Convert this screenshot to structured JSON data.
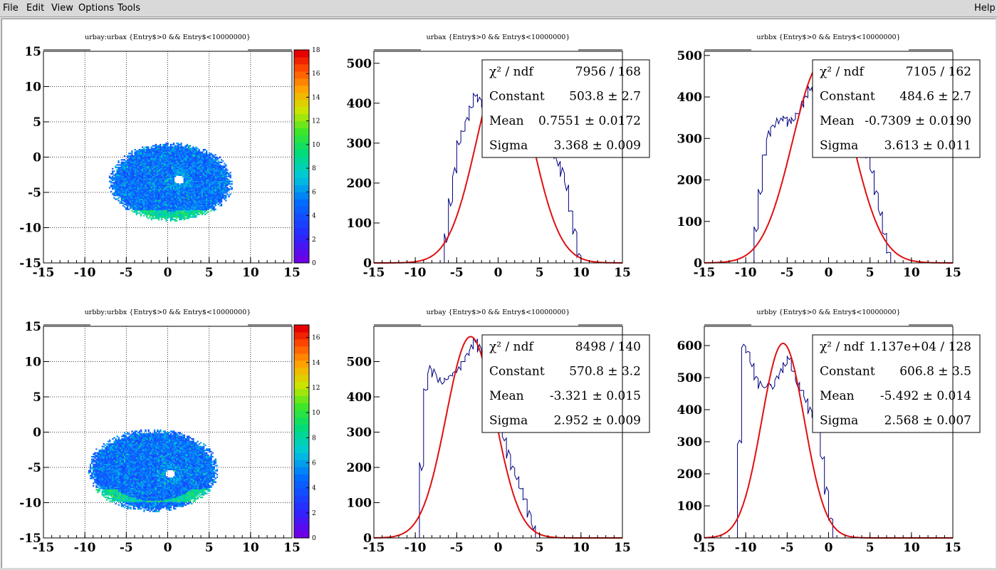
{
  "menu": {
    "file": "File",
    "edit": "Edit",
    "view": "View",
    "options": "Options",
    "tools": "Tools",
    "help": "Help"
  },
  "colors": {
    "hist_line": "#000080",
    "fit_line": "#e01010",
    "grid": "#000000"
  },
  "chart_data": [
    {
      "type": "heatmap",
      "title": "urbay:urbax {Entry$>0 && Entry$<10000000}",
      "xlim": [
        -15,
        15
      ],
      "ylim": [
        -15,
        15
      ],
      "xticks": [
        "-15",
        "-10",
        "-5",
        "0",
        "5",
        "10",
        "15"
      ],
      "yticks": [
        "-15",
        "-10",
        "-5",
        "0",
        "5",
        "10",
        "15"
      ],
      "grid": true,
      "colorbar": {
        "min": 0,
        "max": 18,
        "ticks": [
          "0",
          "2",
          "4",
          "6",
          "8",
          "10",
          "12",
          "14",
          "16",
          "18"
        ]
      },
      "blob": {
        "center": [
          0.3,
          -3.6
        ],
        "semi_axes": [
          7.4,
          5.5
        ],
        "hole": [
          1.3,
          -3.3
        ],
        "hot_band_y": -8.5
      }
    },
    {
      "type": "line",
      "title": "urbax {Entry$>0 && Entry$<10000000}",
      "xlim": [
        -15,
        15
      ],
      "ylim": [
        0,
        530
      ],
      "xticks": [
        "-15",
        "-10",
        "-5",
        "0",
        "5",
        "10",
        "15"
      ],
      "yticks": [
        "0",
        "100",
        "200",
        "300",
        "400",
        "500"
      ],
      "histogram": {
        "x": [
          -7.0,
          -6.5,
          -6.0,
          -5.5,
          -5.0,
          -4.5,
          -4.0,
          -3.5,
          -3.0,
          -2.5,
          -2.0,
          -1.5,
          -1.0,
          -0.5,
          0.0,
          0.5,
          1.0,
          1.5,
          2.0,
          2.5,
          3.0,
          3.5,
          4.0,
          4.5,
          5.0,
          5.5,
          6.0,
          6.5,
          7.0,
          7.5,
          8.0,
          8.5,
          9.0,
          9.5,
          10.0
        ],
        "y": [
          0,
          60,
          150,
          230,
          300,
          330,
          360,
          390,
          420,
          410,
          400,
          390,
          380,
          385,
          390,
          395,
          400,
          405,
          410,
          410,
          405,
          395,
          380,
          360,
          340,
          310,
          290,
          270,
          250,
          230,
          190,
          130,
          80,
          20,
          0
        ]
      },
      "fit": {
        "constant": 503.8,
        "mean": 0.7551,
        "sigma": 3.368
      },
      "stats": [
        {
          "label": "χ² / ndf",
          "value": "7956 / 168"
        },
        {
          "label": "Constant",
          "value": "503.8 ± 2.7"
        },
        {
          "label": "Mean",
          "value": "0.7551 ± 0.0172"
        },
        {
          "label": "Sigma",
          "value": "3.368 ± 0.009"
        }
      ]
    },
    {
      "type": "line",
      "title": "urbbx {Entry$>0 && Entry$<10000000}",
      "xlim": [
        -15,
        15
      ],
      "ylim": [
        0,
        510
      ],
      "xticks": [
        "-15",
        "-10",
        "-5",
        "0",
        "5",
        "10",
        "15"
      ],
      "yticks": [
        "0",
        "100",
        "200",
        "300",
        "400",
        "500"
      ],
      "histogram": {
        "x": [
          -9.5,
          -9.0,
          -8.5,
          -8.0,
          -7.5,
          -7.0,
          -6.5,
          -6.0,
          -5.5,
          -5.0,
          -4.5,
          -4.0,
          -3.5,
          -3.0,
          -2.5,
          -2.0,
          -1.5,
          -1.0,
          -0.5,
          0.0,
          0.5,
          1.0,
          1.5,
          2.0,
          2.5,
          3.0,
          3.5,
          4.0,
          4.5,
          5.0,
          5.5,
          6.0,
          6.5,
          7.0,
          7.5
        ],
        "y": [
          0,
          80,
          170,
          260,
          310,
          330,
          340,
          345,
          350,
          340,
          345,
          360,
          380,
          400,
          420,
          410,
          390,
          380,
          370,
          365,
          360,
          350,
          340,
          330,
          315,
          305,
          290,
          275,
          255,
          220,
          170,
          120,
          70,
          25,
          0
        ]
      },
      "fit": {
        "constant": 484.6,
        "mean": -0.7309,
        "sigma": 3.613
      },
      "stats": [
        {
          "label": "χ² / ndf",
          "value": "7105 / 162"
        },
        {
          "label": "Constant",
          "value": "484.6 ± 2.7"
        },
        {
          "label": "Mean",
          "value": "-0.7309 ± 0.0190"
        },
        {
          "label": "Sigma",
          "value": "3.613 ± 0.011"
        }
      ]
    },
    {
      "type": "heatmap",
      "title": "urbby:urbbx {Entry$>0 && Entry$<10000000}",
      "xlim": [
        -15,
        15
      ],
      "ylim": [
        -15,
        15
      ],
      "xticks": [
        "-15",
        "-10",
        "-5",
        "0",
        "5",
        "10",
        "15"
      ],
      "yticks": [
        "-15",
        "-10",
        "-5",
        "0",
        "5",
        "10",
        "15"
      ],
      "grid": true,
      "colorbar": {
        "min": 0,
        "max": 17,
        "ticks": [
          "0",
          "2",
          "4",
          "6",
          "8",
          "10",
          "12",
          "14",
          "16"
        ]
      },
      "blob": {
        "center": [
          -1.8,
          -5.5
        ],
        "semi_axes": [
          7.8,
          5.8
        ],
        "hole": [
          0.2,
          -6.0
        ],
        "hot_band_y": -9.0
      }
    },
    {
      "type": "line",
      "title": "urbay {Entry$>0 && Entry$<10000000}",
      "xlim": [
        -15,
        15
      ],
      "ylim": [
        0,
        600
      ],
      "xticks": [
        "-15",
        "-10",
        "-5",
        "0",
        "5",
        "10",
        "15"
      ],
      "yticks": [
        "0",
        "100",
        "200",
        "300",
        "400",
        "500"
      ],
      "histogram": {
        "x": [
          -10.0,
          -9.5,
          -9.0,
          -8.5,
          -8.0,
          -7.5,
          -7.0,
          -6.5,
          -6.0,
          -5.5,
          -5.0,
          -4.5,
          -4.0,
          -3.5,
          -3.0,
          -2.5,
          -2.0,
          -1.5,
          -1.0,
          -0.5,
          0.0,
          0.5,
          1.0,
          1.5,
          2.0,
          2.5,
          3.0,
          3.5,
          4.0,
          4.5
        ],
        "y": [
          0,
          200,
          420,
          480,
          470,
          450,
          440,
          450,
          460,
          470,
          480,
          500,
          520,
          540,
          560,
          540,
          510,
          480,
          430,
          380,
          330,
          280,
          240,
          200,
          170,
          140,
          110,
          70,
          30,
          0
        ]
      },
      "fit": {
        "constant": 570.8,
        "mean": -3.321,
        "sigma": 2.952
      },
      "stats": [
        {
          "label": "χ² / ndf",
          "value": "8498 / 140"
        },
        {
          "label": "Constant",
          "value": "570.8 ± 3.2"
        },
        {
          "label": "Mean",
          "value": "-3.321 ± 0.015"
        },
        {
          "label": "Sigma",
          "value": "2.952 ± 0.009"
        }
      ]
    },
    {
      "type": "line",
      "title": "urbby {Entry$>0 && Entry$<10000000}",
      "xlim": [
        -15,
        15
      ],
      "ylim": [
        0,
        660
      ],
      "xticks": [
        "-15",
        "-10",
        "-5",
        "0",
        "5",
        "10",
        "15"
      ],
      "yticks": [
        "0",
        "100",
        "200",
        "300",
        "400",
        "500",
        "600"
      ],
      "histogram": {
        "x": [
          -11.5,
          -11.0,
          -10.5,
          -10.0,
          -9.5,
          -9.0,
          -8.5,
          -8.0,
          -7.5,
          -7.0,
          -6.5,
          -6.0,
          -5.5,
          -5.0,
          -4.5,
          -4.0,
          -3.5,
          -3.0,
          -2.5,
          -2.0,
          -1.5,
          -1.0,
          -0.5,
          0.0,
          0.5
        ],
        "y": [
          0,
          300,
          600,
          580,
          540,
          500,
          480,
          470,
          480,
          470,
          500,
          520,
          540,
          560,
          520,
          480,
          460,
          430,
          400,
          380,
          360,
          250,
          150,
          60,
          0
        ]
      },
      "fit": {
        "constant": 606.8,
        "mean": -5.492,
        "sigma": 2.568
      },
      "stats": [
        {
          "label": "χ² / ndf",
          "value": "1.137e+04 / 128"
        },
        {
          "label": "Constant",
          "value": "606.8 ± 3.5"
        },
        {
          "label": "Mean",
          "value": "-5.492 ± 0.014"
        },
        {
          "label": "Sigma",
          "value": "2.568 ± 0.007"
        }
      ]
    }
  ]
}
